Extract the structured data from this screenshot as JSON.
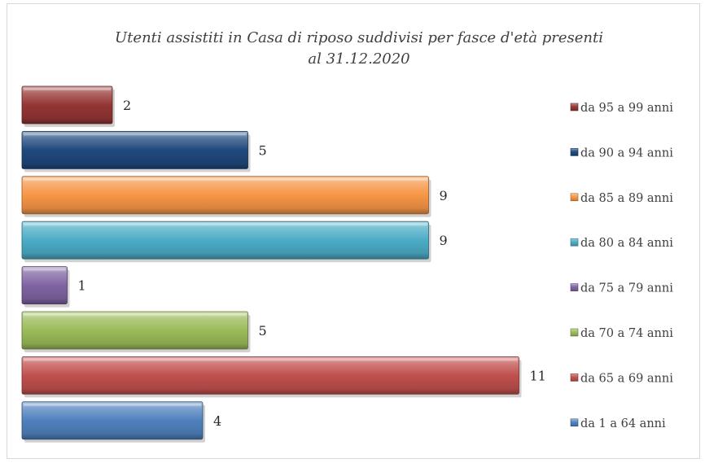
{
  "chart_data": {
    "type": "bar",
    "orientation": "horizontal",
    "title": "Utenti assistiti in Casa di riposo suddivisi per fasce d'età presenti al 31.12.2020",
    "title_lines": [
      "Utenti assistiti in Casa di riposo suddivisi per fasce d'età presenti",
      "al 31.12.2020"
    ],
    "xlabel": "",
    "ylabel": "",
    "xlim": [
      0,
      12
    ],
    "grid": false,
    "axis_visible": false,
    "legend_position": "right",
    "series": [
      {
        "name": "da 95 a 99 anni",
        "value": 2,
        "color": "#943634"
      },
      {
        "name": "da 90 a 94 anni",
        "value": 5,
        "color": "#1f497d"
      },
      {
        "name": "da 85 a 89 anni",
        "value": 9,
        "color": "#f79646"
      },
      {
        "name": "da 80 a 84 anni",
        "value": 9,
        "color": "#4bacc6"
      },
      {
        "name": "da 75 a 79 anni",
        "value": 1,
        "color": "#8064a2"
      },
      {
        "name": "da 70 a 74 anni",
        "value": 5,
        "color": "#9bbb59"
      },
      {
        "name": "da 65 a 69 anni",
        "value": 11,
        "color": "#c0504d"
      },
      {
        "name": "da 1 a 64 anni",
        "value": 4,
        "color": "#4f81bd"
      }
    ]
  }
}
